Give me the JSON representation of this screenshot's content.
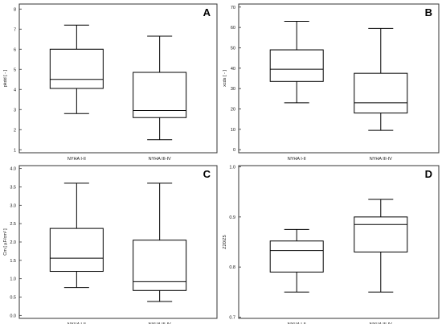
{
  "chart_data": [
    {
      "type": "box",
      "panel": "A",
      "ylabel": "pkdd [ - ]",
      "yticks": [
        1,
        2,
        3,
        4,
        5,
        6,
        7,
        8
      ],
      "ylim": [
        0.85,
        8.25
      ],
      "categories": [
        "NYHA I-II",
        "NYHA III-IV"
      ],
      "boxes": [
        {
          "min": 2.8,
          "q1": 4.05,
          "median": 4.5,
          "q3": 6.0,
          "max": 7.2
        },
        {
          "min": 1.5,
          "q1": 2.6,
          "median": 2.95,
          "q3": 4.85,
          "max": 6.65
        }
      ]
    },
    {
      "type": "box",
      "panel": "B",
      "ylabel": "xcds [ - ]",
      "yticks": [
        0,
        10,
        20,
        30,
        40,
        50,
        60,
        70
      ],
      "ylim": [
        -1.5,
        71.5
      ],
      "categories": [
        "NYHA I-II",
        "NYHA III-IV"
      ],
      "boxes": [
        {
          "min": 23,
          "q1": 33.5,
          "median": 39.5,
          "q3": 49,
          "max": 63
        },
        {
          "min": 9.5,
          "q1": 18,
          "median": 23,
          "q3": 37.5,
          "max": 59.5
        }
      ]
    },
    {
      "type": "box",
      "panel": "C",
      "ylabel": "Cm [ µF/cm² ]",
      "yticks": [
        0.0,
        0.5,
        1.0,
        1.5,
        2.0,
        2.5,
        3.0,
        3.5,
        4.0
      ],
      "ytick_labels": [
        "0.0",
        "0.5",
        "1.0",
        "1.5",
        "2.0",
        "2.5",
        "3.0",
        "3.5",
        "4.0"
      ],
      "ylim": [
        -0.08,
        4.08
      ],
      "categories": [
        "NYHA I-II",
        "NYHA III-IV"
      ],
      "boxes": [
        {
          "min": 0.76,
          "q1": 1.2,
          "median": 1.56,
          "q3": 2.37,
          "max": 3.6
        },
        {
          "min": 0.38,
          "q1": 0.68,
          "median": 0.92,
          "q3": 2.05,
          "max": 3.6
        }
      ]
    },
    {
      "type": "box",
      "panel": "D",
      "ylabel": "Z20/Z5",
      "yticks": [
        0.7,
        0.8,
        0.9,
        1.0
      ],
      "ytick_labels": [
        "0.7",
        "0.8",
        "0.9",
        "1.0"
      ],
      "ylim": [
        0.6975,
        1.0025
      ],
      "categories": [
        "NYHA I-II",
        "NYHA III-IV"
      ],
      "boxes": [
        {
          "min": 0.75,
          "q1": 0.79,
          "median": 0.833,
          "q3": 0.852,
          "max": 0.875
        },
        {
          "min": 0.75,
          "q1": 0.83,
          "median": 0.885,
          "q3": 0.9,
          "max": 0.935
        }
      ]
    }
  ]
}
